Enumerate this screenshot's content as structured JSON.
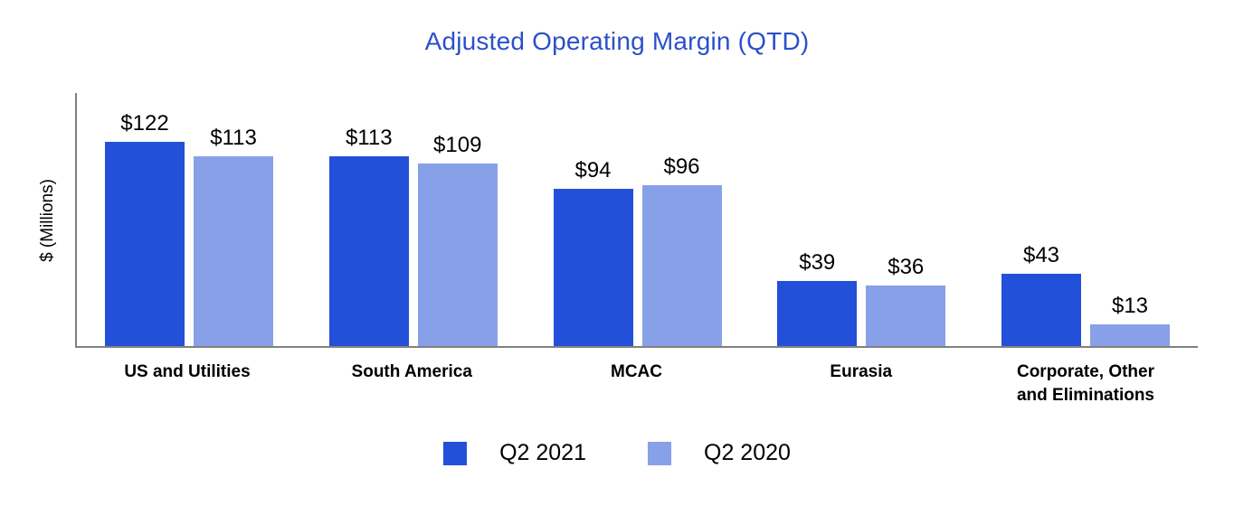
{
  "title": "Adjusted Operating Margin (QTD)",
  "colors": {
    "title": "#2b50c8",
    "axis": "#808080",
    "series_q2_2021": "#2350d8",
    "series_q2_2020": "#88a0e8"
  },
  "chart_data": {
    "type": "bar",
    "title": "Adjusted Operating Margin (QTD)",
    "xlabel": "",
    "ylabel": "$ (Millions)",
    "ylim": [
      0,
      152
    ],
    "grid": false,
    "legend_position": "bottom",
    "categories": [
      "US and Utilities",
      "South America",
      "MCAC",
      "Eurasia",
      "Corporate, Other and Eliminations"
    ],
    "series": [
      {
        "name": "Q2 2021",
        "color": "#2350d8",
        "values": [
          122,
          113,
          94,
          39,
          43
        ],
        "labels": [
          "$122",
          "$113",
          "$94",
          "$39",
          "$43"
        ]
      },
      {
        "name": "Q2 2020",
        "color": "#88a0e8",
        "values": [
          113,
          109,
          96,
          36,
          13
        ],
        "labels": [
          "$113",
          "$109",
          "$96",
          "$36",
          "$13"
        ]
      }
    ]
  }
}
